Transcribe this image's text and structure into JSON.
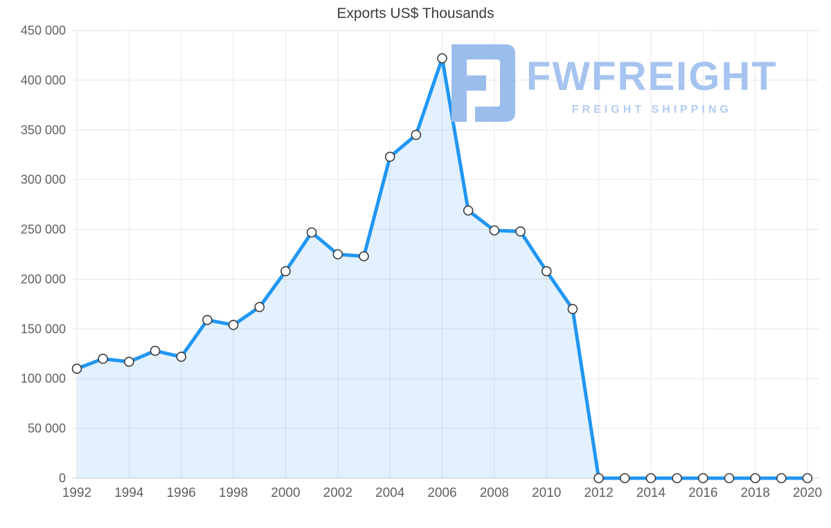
{
  "chart_data": {
    "type": "area",
    "title": "Exports US$ Thousands",
    "x": [
      1992,
      1993,
      1994,
      1995,
      1996,
      1997,
      1998,
      1999,
      2000,
      2001,
      2002,
      2003,
      2004,
      2005,
      2006,
      2007,
      2008,
      2009,
      2010,
      2011,
      2012,
      2013,
      2014,
      2015,
      2016,
      2017,
      2018,
      2019,
      2020
    ],
    "series": [
      {
        "name": "Exports US$ Thousands",
        "values": [
          110000,
          120000,
          117000,
          128000,
          122000,
          159000,
          154000,
          172000,
          208000,
          247000,
          225000,
          223000,
          323000,
          345000,
          422000,
          269000,
          249000,
          248000,
          208000,
          170000,
          0,
          0,
          0,
          0,
          0,
          0,
          0,
          0,
          0
        ]
      }
    ],
    "xlabel": "",
    "ylabel": "",
    "ylim": [
      0,
      450000
    ],
    "ytick_step": 50000,
    "ytick_labels": [
      "0",
      "50 000",
      "100 000",
      "150 000",
      "200 000",
      "250 000",
      "300 000",
      "350 000",
      "400 000",
      "450 000"
    ],
    "xtick_step": 2,
    "xtick_labels": [
      "1992",
      "1994",
      "1996",
      "1998",
      "2000",
      "2002",
      "2004",
      "2006",
      "2008",
      "2010",
      "2012",
      "2014",
      "2016",
      "2018",
      "2020"
    ],
    "grid": true,
    "legend_position": "none",
    "line_color": "#2196f3",
    "fill_color": "rgba(33,150,243,0.13)",
    "marker_fill": "#ffffff",
    "marker_stroke": "#3a3a3a",
    "grid_color": "#e6e6e6",
    "axis_line_color": "#cccccc",
    "axis_label_color": "#5f5f5f"
  },
  "watermark": {
    "brand": "FWFREIGHT",
    "tagline": "FREIGHT SHIPPING",
    "brand_color": "#a6c4ef",
    "tagline_color": "#b4ccf2",
    "icon_color": "#9bbdec"
  }
}
